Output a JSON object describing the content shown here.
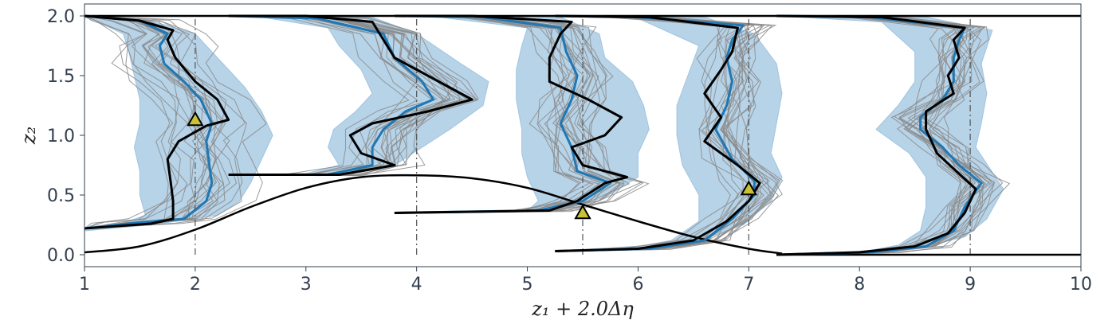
{
  "chart_data": {
    "type": "line",
    "xlabel": "z₁ + 2.0Δη",
    "ylabel": "z₂",
    "xlim": [
      1,
      10
    ],
    "ylim": [
      -0.1,
      2.1
    ],
    "xticks": [
      1,
      2,
      3,
      4,
      5,
      6,
      7,
      8,
      9,
      10
    ],
    "xtick_labels": [
      "1",
      "2",
      "3",
      "4",
      "5",
      "6",
      "7",
      "8",
      "9",
      "10"
    ],
    "yticks": [
      0.0,
      0.5,
      1.0,
      1.5,
      2.0
    ],
    "ytick_labels": [
      "0.0",
      "0.5",
      "1.0",
      "1.5",
      "2.0"
    ],
    "grid": false,
    "colors": {
      "ensemble": "#8a8a8a",
      "band": "#9fc4e0",
      "mean": "#1f77b4",
      "truth": "#000000",
      "marker_fill": "#c8c234",
      "reference_line": "#555555",
      "axis_text": "#333f4f"
    },
    "boundaries": {
      "top_wall": [
        [
          1,
          2.0
        ],
        [
          10,
          2.0
        ]
      ],
      "bottom_wall": [
        [
          7.3,
          0.0
        ],
        [
          10,
          0.0
        ]
      ],
      "hill": [
        [
          1.0,
          0.02
        ],
        [
          1.5,
          0.07
        ],
        [
          2.0,
          0.21
        ],
        [
          2.5,
          0.4
        ],
        [
          3.0,
          0.56
        ],
        [
          3.5,
          0.65
        ],
        [
          4.0,
          0.665
        ],
        [
          4.5,
          0.64
        ],
        [
          5.0,
          0.56
        ],
        [
          5.5,
          0.42
        ],
        [
          6.0,
          0.28
        ],
        [
          6.5,
          0.15
        ],
        [
          7.0,
          0.05
        ],
        [
          7.3,
          0.01
        ]
      ]
    },
    "profiles": [
      {
        "station": 2.0,
        "truth": [
          [
            1.0,
            0.22
          ],
          [
            1.6,
            0.26
          ],
          [
            1.8,
            0.3
          ],
          [
            1.8,
            0.45
          ],
          [
            1.78,
            0.6
          ],
          [
            1.75,
            0.8
          ],
          [
            1.85,
            0.95
          ],
          [
            2.1,
            1.08
          ],
          [
            2.3,
            1.13
          ],
          [
            2.2,
            1.3
          ],
          [
            2.0,
            1.45
          ],
          [
            1.82,
            1.65
          ],
          [
            1.75,
            1.8
          ],
          [
            1.8,
            1.88
          ],
          [
            1.5,
            1.96
          ],
          [
            1.0,
            2.0
          ]
        ],
        "mean": [
          [
            1.0,
            0.22
          ],
          [
            1.5,
            0.27
          ],
          [
            1.9,
            0.3
          ],
          [
            2.1,
            0.45
          ],
          [
            2.15,
            0.6
          ],
          [
            2.12,
            0.8
          ],
          [
            2.1,
            0.95
          ],
          [
            2.15,
            1.1
          ],
          [
            2.05,
            1.3
          ],
          [
            1.9,
            1.45
          ],
          [
            1.72,
            1.6
          ],
          [
            1.68,
            1.75
          ],
          [
            1.75,
            1.85
          ],
          [
            1.5,
            1.96
          ],
          [
            1.0,
            2.0
          ]
        ],
        "band_left": [
          [
            1.0,
            0.2
          ],
          [
            1.3,
            0.25
          ],
          [
            1.55,
            0.33
          ],
          [
            1.5,
            0.5
          ],
          [
            1.5,
            0.7
          ],
          [
            1.45,
            0.9
          ],
          [
            1.5,
            1.1
          ],
          [
            1.5,
            1.3
          ],
          [
            1.45,
            1.5
          ],
          [
            1.4,
            1.7
          ],
          [
            1.35,
            1.85
          ],
          [
            1.1,
            1.96
          ],
          [
            1.0,
            1.99
          ]
        ],
        "band_right": [
          [
            1.0,
            1.99
          ],
          [
            1.6,
            1.96
          ],
          [
            2.0,
            1.85
          ],
          [
            2.2,
            1.65
          ],
          [
            2.45,
            1.4
          ],
          [
            2.6,
            1.2
          ],
          [
            2.7,
            1.0
          ],
          [
            2.6,
            0.8
          ],
          [
            2.5,
            0.6
          ],
          [
            2.4,
            0.45
          ],
          [
            2.2,
            0.33
          ],
          [
            1.6,
            0.25
          ],
          [
            1.0,
            0.2
          ]
        ],
        "marker": [
          2.0,
          1.13
        ],
        "shift": 0.8
      },
      {
        "station": 4.0,
        "truth": [
          [
            2.3,
            0.67
          ],
          [
            3.3,
            0.67
          ],
          [
            3.8,
            0.75
          ],
          [
            3.5,
            0.85
          ],
          [
            3.4,
            1.0
          ],
          [
            3.6,
            1.1
          ],
          [
            4.1,
            1.2
          ],
          [
            4.5,
            1.3
          ],
          [
            4.2,
            1.45
          ],
          [
            3.8,
            1.65
          ],
          [
            3.7,
            1.8
          ],
          [
            3.6,
            1.95
          ],
          [
            3.0,
            2.0
          ],
          [
            2.3,
            2.0
          ]
        ],
        "mean": [
          [
            2.3,
            0.67
          ],
          [
            3.2,
            0.67
          ],
          [
            3.6,
            0.75
          ],
          [
            3.6,
            0.9
          ],
          [
            3.7,
            1.05
          ],
          [
            3.9,
            1.2
          ],
          [
            4.15,
            1.3
          ],
          [
            4.05,
            1.45
          ],
          [
            3.8,
            1.65
          ],
          [
            3.7,
            1.85
          ],
          [
            3.1,
            1.98
          ],
          [
            2.3,
            2.0
          ]
        ],
        "band_left": [
          [
            2.3,
            0.67
          ],
          [
            3.0,
            0.68
          ],
          [
            3.3,
            0.75
          ],
          [
            3.2,
            0.9
          ],
          [
            3.25,
            1.05
          ],
          [
            3.45,
            1.2
          ],
          [
            3.6,
            1.35
          ],
          [
            3.5,
            1.55
          ],
          [
            3.3,
            1.75
          ],
          [
            3.2,
            1.9
          ],
          [
            2.6,
            1.99
          ],
          [
            2.3,
            2.0
          ]
        ],
        "band_right": [
          [
            2.3,
            2.0
          ],
          [
            3.6,
            1.99
          ],
          [
            4.0,
            1.85
          ],
          [
            4.4,
            1.6
          ],
          [
            4.65,
            1.45
          ],
          [
            4.6,
            1.25
          ],
          [
            4.3,
            1.05
          ],
          [
            4.05,
            0.9
          ],
          [
            3.8,
            0.75
          ],
          [
            3.3,
            0.68
          ],
          [
            2.3,
            0.67
          ]
        ],
        "marker": null,
        "shift": 0.65
      },
      {
        "station": 5.5,
        "truth": [
          [
            3.8,
            0.35
          ],
          [
            5.2,
            0.37
          ],
          [
            5.45,
            0.45
          ],
          [
            5.7,
            0.6
          ],
          [
            5.9,
            0.65
          ],
          [
            5.5,
            0.75
          ],
          [
            5.4,
            0.9
          ],
          [
            5.7,
            1.0
          ],
          [
            5.85,
            1.15
          ],
          [
            5.55,
            1.3
          ],
          [
            5.2,
            1.45
          ],
          [
            5.2,
            1.65
          ],
          [
            5.3,
            1.85
          ],
          [
            5.4,
            1.95
          ],
          [
            4.5,
            2.0
          ],
          [
            3.8,
            2.0
          ]
        ],
        "mean": [
          [
            3.8,
            0.35
          ],
          [
            5.1,
            0.37
          ],
          [
            5.5,
            0.45
          ],
          [
            5.75,
            0.6
          ],
          [
            5.45,
            0.7
          ],
          [
            5.4,
            0.9
          ],
          [
            5.3,
            1.1
          ],
          [
            5.4,
            1.3
          ],
          [
            5.45,
            1.5
          ],
          [
            5.35,
            1.7
          ],
          [
            5.3,
            1.9
          ],
          [
            4.6,
            1.99
          ],
          [
            3.8,
            2.0
          ]
        ],
        "band_left": [
          [
            3.8,
            0.35
          ],
          [
            5.0,
            0.37
          ],
          [
            5.1,
            0.45
          ],
          [
            5.0,
            0.65
          ],
          [
            4.95,
            0.85
          ],
          [
            4.95,
            1.05
          ],
          [
            4.9,
            1.3
          ],
          [
            4.9,
            1.55
          ],
          [
            4.95,
            1.75
          ],
          [
            5.0,
            1.9
          ],
          [
            4.2,
            1.99
          ],
          [
            3.8,
            2.0
          ]
        ],
        "band_right": [
          [
            3.8,
            2.0
          ],
          [
            5.3,
            1.99
          ],
          [
            5.65,
            1.85
          ],
          [
            5.7,
            1.65
          ],
          [
            5.95,
            1.45
          ],
          [
            6.05,
            1.25
          ],
          [
            6.1,
            1.05
          ],
          [
            6.0,
            0.85
          ],
          [
            6.0,
            0.65
          ],
          [
            5.7,
            0.48
          ],
          [
            5.3,
            0.38
          ],
          [
            3.8,
            0.35
          ]
        ],
        "marker": [
          5.5,
          0.35
        ],
        "shift": 0.45
      },
      {
        "station": 7.0,
        "truth": [
          [
            5.25,
            0.03
          ],
          [
            6.0,
            0.05
          ],
          [
            6.5,
            0.12
          ],
          [
            6.8,
            0.28
          ],
          [
            7.0,
            0.45
          ],
          [
            7.1,
            0.6
          ],
          [
            6.9,
            0.75
          ],
          [
            6.6,
            0.95
          ],
          [
            6.75,
            1.15
          ],
          [
            6.6,
            1.35
          ],
          [
            6.75,
            1.55
          ],
          [
            6.85,
            1.7
          ],
          [
            6.9,
            1.9
          ],
          [
            6.1,
            1.99
          ],
          [
            5.25,
            2.0
          ]
        ],
        "mean": [
          [
            5.25,
            0.03
          ],
          [
            6.1,
            0.05
          ],
          [
            6.6,
            0.12
          ],
          [
            6.85,
            0.3
          ],
          [
            7.05,
            0.5
          ],
          [
            7.05,
            0.62
          ],
          [
            6.85,
            0.8
          ],
          [
            6.7,
            1.05
          ],
          [
            6.8,
            1.25
          ],
          [
            6.85,
            1.45
          ],
          [
            6.8,
            1.65
          ],
          [
            6.85,
            1.8
          ],
          [
            6.95,
            1.92
          ],
          [
            6.0,
            1.99
          ],
          [
            5.25,
            2.0
          ]
        ],
        "band_left": [
          [
            5.25,
            0.03
          ],
          [
            5.9,
            0.05
          ],
          [
            6.3,
            0.12
          ],
          [
            6.55,
            0.28
          ],
          [
            6.55,
            0.5
          ],
          [
            6.4,
            0.75
          ],
          [
            6.35,
            1.0
          ],
          [
            6.35,
            1.25
          ],
          [
            6.45,
            1.5
          ],
          [
            6.55,
            1.75
          ],
          [
            6.0,
            1.98
          ],
          [
            5.25,
            2.0
          ]
        ],
        "band_right": [
          [
            5.25,
            2.0
          ],
          [
            6.6,
            1.99
          ],
          [
            7.05,
            1.85
          ],
          [
            7.25,
            1.6
          ],
          [
            7.3,
            1.35
          ],
          [
            7.25,
            1.1
          ],
          [
            7.2,
            0.85
          ],
          [
            7.3,
            0.65
          ],
          [
            7.2,
            0.45
          ],
          [
            6.95,
            0.25
          ],
          [
            6.5,
            0.1
          ],
          [
            5.25,
            0.03
          ]
        ],
        "marker": [
          7.0,
          0.55
        ],
        "shift": 0.35
      },
      {
        "station": 9.0,
        "truth": [
          [
            7.25,
            0.0
          ],
          [
            8.0,
            0.02
          ],
          [
            8.5,
            0.07
          ],
          [
            8.8,
            0.18
          ],
          [
            8.95,
            0.35
          ],
          [
            9.05,
            0.55
          ],
          [
            8.85,
            0.72
          ],
          [
            8.7,
            0.85
          ],
          [
            8.6,
            1.05
          ],
          [
            8.6,
            1.2
          ],
          [
            8.85,
            1.35
          ],
          [
            8.8,
            1.5
          ],
          [
            8.9,
            1.65
          ],
          [
            8.85,
            1.8
          ],
          [
            8.95,
            1.9
          ],
          [
            8.2,
            1.99
          ],
          [
            7.25,
            2.0
          ]
        ],
        "mean": [
          [
            7.25,
            0.0
          ],
          [
            8.1,
            0.02
          ],
          [
            8.6,
            0.07
          ],
          [
            8.85,
            0.2
          ],
          [
            8.95,
            0.4
          ],
          [
            9.1,
            0.6
          ],
          [
            8.9,
            0.75
          ],
          [
            8.75,
            0.9
          ],
          [
            8.55,
            1.05
          ],
          [
            8.55,
            1.15
          ],
          [
            8.75,
            1.3
          ],
          [
            8.85,
            1.45
          ],
          [
            8.85,
            1.65
          ],
          [
            8.9,
            1.8
          ],
          [
            8.95,
            1.9
          ],
          [
            8.1,
            1.99
          ],
          [
            7.25,
            2.0
          ]
        ],
        "band_left": [
          [
            7.25,
            0.0
          ],
          [
            8.0,
            0.02
          ],
          [
            8.35,
            0.08
          ],
          [
            8.55,
            0.2
          ],
          [
            8.6,
            0.4
          ],
          [
            8.6,
            0.65
          ],
          [
            8.45,
            0.85
          ],
          [
            8.15,
            1.05
          ],
          [
            8.35,
            1.25
          ],
          [
            8.5,
            1.45
          ],
          [
            8.5,
            1.7
          ],
          [
            8.2,
            1.95
          ],
          [
            7.25,
            2.0
          ]
        ],
        "band_right": [
          [
            7.25,
            2.0
          ],
          [
            8.6,
            1.99
          ],
          [
            9.2,
            1.88
          ],
          [
            9.1,
            1.6
          ],
          [
            9.15,
            1.35
          ],
          [
            9.1,
            1.1
          ],
          [
            9.05,
            0.9
          ],
          [
            9.3,
            0.55
          ],
          [
            9.15,
            0.3
          ],
          [
            8.95,
            0.15
          ],
          [
            8.5,
            0.05
          ],
          [
            7.25,
            0.0
          ]
        ],
        "marker": null,
        "shift": 0.3
      }
    ]
  }
}
